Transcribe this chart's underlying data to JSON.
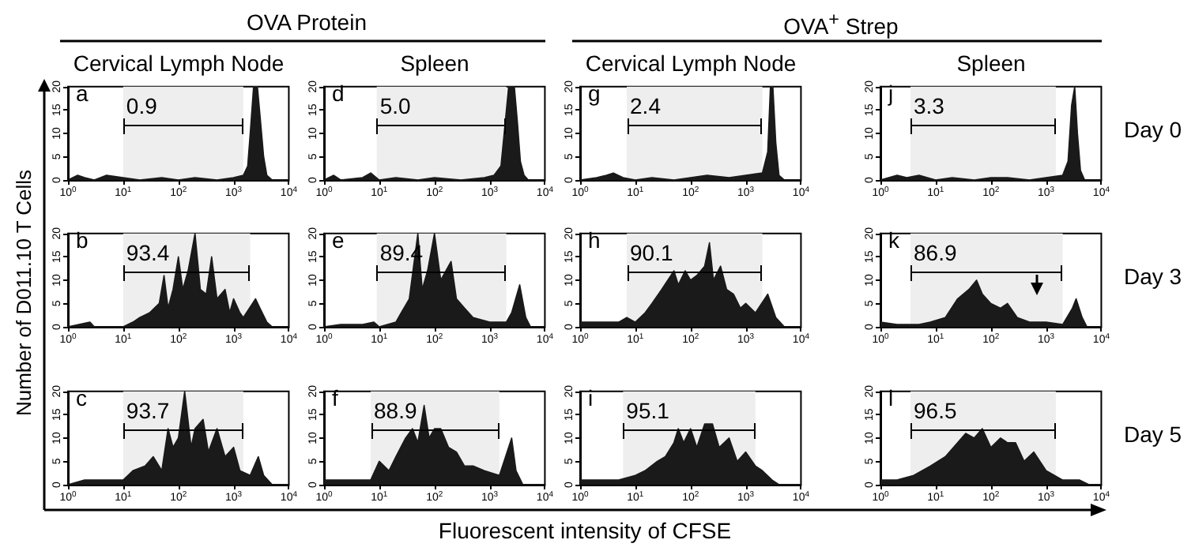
{
  "chart_data": [
    {
      "type": "area",
      "title": "Cervical Lymph Node",
      "annotations": [
        "a",
        "OVA Protein"
      ],
      "color": "#1a1a1a",
      "x": [
        1,
        1.5,
        2,
        3,
        5,
        10,
        20,
        50,
        100,
        200,
        500,
        1000,
        1500,
        1800,
        2000,
        2300,
        2700,
        3000,
        3500,
        4000,
        5000,
        10000
      ],
      "values": [
        0,
        1,
        0.5,
        0,
        1,
        0.5,
        0,
        0.5,
        0,
        0.5,
        0,
        0.5,
        1,
        3,
        10,
        20,
        20,
        14,
        5,
        1,
        0,
        0
      ],
      "log": "x",
      "xlim": [
        1,
        10000
      ],
      "xticks": [
        {
          "value": 1,
          "label": "10$^{0}$"
        },
        {
          "value": 10,
          "label": "10$^{1}$"
        },
        {
          "value": 100,
          "label": "10$^{2}$"
        },
        {
          "value": 1000,
          "label": "10$^{3}$"
        },
        {
          "value": 10000,
          "label": "10$^{4}$"
        }
      ],
      "ylim": [
        0,
        20
      ],
      "yticks": [
        0,
        5,
        10,
        15,
        20
      ],
      "bands": [
        {
          "axis": "x",
          "from": 10,
          "to": 1500,
          "label": "0.9"
        }
      ]
    },
    {
      "type": "area",
      "title": "Spleen",
      "annotations": [
        "d"
      ],
      "color": "#1a1a1a",
      "x": [
        1,
        1.5,
        2,
        5,
        7,
        10,
        20,
        50,
        100,
        300,
        800,
        1200,
        1600,
        1900,
        2200,
        2800,
        3200,
        3600,
        4200,
        5000,
        10000
      ],
      "values": [
        0,
        1,
        0,
        0.5,
        1.5,
        0,
        0.5,
        0,
        0.5,
        0,
        0.5,
        1,
        3,
        12,
        20,
        20,
        12,
        4,
        1,
        0,
        0
      ],
      "log": "x",
      "xlim": [
        1,
        10000
      ],
      "xticks": [
        {
          "value": 1,
          "label": "10$^{0}$"
        },
        {
          "value": 10,
          "label": "10$^{1}$"
        },
        {
          "value": 100,
          "label": "10$^{2}$"
        },
        {
          "value": 1000,
          "label": "10$^{3}$"
        },
        {
          "value": 10000,
          "label": "10$^{4}$"
        }
      ],
      "ylim": [
        0,
        20
      ],
      "yticks": [
        0,
        5,
        10,
        15,
        20
      ],
      "bands": [
        {
          "axis": "x",
          "from": 9,
          "to": 2000,
          "label": "5.0"
        }
      ]
    },
    {
      "type": "area",
      "title": "Cervical Lymph Node",
      "annotations": [
        "g",
        "OVA$^{+}$ Strep"
      ],
      "color": "#1a1a1a",
      "x": [
        1,
        2,
        3,
        4,
        6,
        10,
        20,
        50,
        100,
        200,
        500,
        1000,
        2000,
        2500,
        2800,
        3100,
        3500,
        4000,
        5000,
        10000
      ],
      "values": [
        0,
        0.5,
        1,
        1.5,
        0.5,
        0,
        0.5,
        0,
        0.5,
        1,
        0.5,
        1,
        1.5,
        6,
        20,
        20,
        8,
        1,
        0,
        0
      ],
      "log": "x",
      "xlim": [
        1,
        10000
      ],
      "xticks": [
        {
          "value": 1,
          "label": "10$^{0}$"
        },
        {
          "value": 10,
          "label": "10$^{1}$"
        },
        {
          "value": 100,
          "label": "10$^{2}$"
        },
        {
          "value": 1000,
          "label": "10$^{3}$"
        },
        {
          "value": 10000,
          "label": "10$^{4}$"
        }
      ],
      "ylim": [
        0,
        20
      ],
      "yticks": [
        0,
        5,
        10,
        15,
        20
      ],
      "bands": [
        {
          "axis": "x",
          "from": 7,
          "to": 2000,
          "label": "2.4"
        }
      ]
    },
    {
      "type": "area",
      "title": "Spleen",
      "annotations": [
        "j",
        "Day 0"
      ],
      "color": "#1a1a1a",
      "x": [
        1,
        2,
        3,
        5,
        10,
        20,
        50,
        100,
        200,
        500,
        1000,
        2000,
        2500,
        2900,
        3300,
        3700,
        4200,
        5000,
        10000
      ],
      "values": [
        0,
        1,
        0.5,
        1,
        0,
        0.5,
        0,
        0.5,
        0.5,
        0,
        0.5,
        1,
        4,
        16,
        20,
        10,
        2,
        0,
        0
      ],
      "log": "x",
      "xlim": [
        1,
        10000
      ],
      "xticks": [
        {
          "value": 1,
          "label": "10$^{0}$"
        },
        {
          "value": 10,
          "label": "10$^{1}$"
        },
        {
          "value": 100,
          "label": "10$^{2}$"
        },
        {
          "value": 1000,
          "label": "10$^{3}$"
        },
        {
          "value": 10000,
          "label": "10$^{4}$"
        }
      ],
      "ylim": [
        0,
        20
      ],
      "yticks": [
        0,
        5,
        10,
        15,
        20
      ],
      "bands": [
        {
          "axis": "x",
          "from": 3.5,
          "to": 1500,
          "label": "3.3"
        }
      ]
    },
    {
      "type": "area",
      "annotations": [
        "b"
      ],
      "ylabel": "Number of D011.10 T Cells",
      "color": "#1a1a1a",
      "x": [
        1,
        2.5,
        3,
        10,
        15,
        20,
        30,
        45,
        55,
        65,
        80,
        100,
        120,
        150,
        200,
        250,
        320,
        400,
        500,
        700,
        850,
        1000,
        1300,
        1500,
        2500,
        3000,
        4000,
        5000,
        10000
      ],
      "values": [
        0,
        1,
        0,
        0,
        1,
        2,
        3,
        5,
        11,
        4,
        8,
        15,
        8,
        12,
        20,
        8,
        7,
        15,
        6,
        8,
        3,
        6,
        3,
        2,
        6,
        4,
        1,
        0,
        0
      ],
      "log": "x",
      "xlim": [
        1,
        10000
      ],
      "xticks": [
        {
          "value": 1,
          "label": "10$^{0}$"
        },
        {
          "value": 10,
          "label": "10$^{1}$"
        },
        {
          "value": 100,
          "label": "10$^{2}$"
        },
        {
          "value": 1000,
          "label": "10$^{3}$"
        },
        {
          "value": 10000,
          "label": "10$^{4}$"
        }
      ],
      "ylim": [
        0,
        20
      ],
      "yticks": [
        0,
        5,
        10,
        15,
        20
      ],
      "bands": [
        {
          "axis": "x",
          "from": 10,
          "to": 2000,
          "label": "93.4"
        }
      ]
    },
    {
      "type": "area",
      "annotations": [
        "e"
      ],
      "color": "#1a1a1a",
      "x": [
        1,
        2,
        5,
        8,
        10,
        20,
        25,
        35,
        50,
        60,
        75,
        100,
        130,
        200,
        250,
        350,
        500,
        1000,
        2000,
        2500,
        3500,
        4500,
        5500,
        10000
      ],
      "values": [
        0,
        0.5,
        0.5,
        1,
        0,
        1,
        3,
        6,
        20,
        8,
        12,
        20,
        10,
        14,
        6,
        4,
        2,
        1,
        1,
        3,
        9,
        2,
        0,
        0
      ],
      "log": "x",
      "xlim": [
        1,
        10000
      ],
      "xticks": [
        {
          "value": 1,
          "label": "10$^{0}$"
        },
        {
          "value": 10,
          "label": "10$^{1}$"
        },
        {
          "value": 100,
          "label": "10$^{2}$"
        },
        {
          "value": 1000,
          "label": "10$^{3}$"
        },
        {
          "value": 10000,
          "label": "10$^{4}$"
        }
      ],
      "ylim": [
        0,
        20
      ],
      "yticks": [
        0,
        5,
        10,
        15,
        20
      ],
      "bands": [
        {
          "axis": "x",
          "from": 9,
          "to": 2000,
          "label": "89.4"
        }
      ]
    },
    {
      "type": "area",
      "annotations": [
        "h"
      ],
      "color": "#1a1a1a",
      "x": [
        1,
        2,
        5,
        7,
        10,
        15,
        20,
        30,
        50,
        60,
        80,
        100,
        130,
        180,
        220,
        260,
        350,
        450,
        600,
        800,
        1000,
        1500,
        2500,
        3500,
        5000,
        10000
      ],
      "values": [
        1,
        1,
        1,
        2,
        1,
        3,
        5,
        8,
        12,
        9,
        12,
        10,
        11,
        13,
        18,
        10,
        13,
        8,
        7,
        4,
        5,
        3,
        7,
        2,
        0,
        0
      ],
      "log": "x",
      "xlim": [
        1,
        10000
      ],
      "xticks": [
        {
          "value": 1,
          "label": "10$^{0}$"
        },
        {
          "value": 10,
          "label": "10$^{1}$"
        },
        {
          "value": 100,
          "label": "10$^{2}$"
        },
        {
          "value": 1000,
          "label": "10$^{3}$"
        },
        {
          "value": 10000,
          "label": "10$^{4}$"
        }
      ],
      "ylim": [
        0,
        20
      ],
      "yticks": [
        0,
        5,
        10,
        15,
        20
      ],
      "bands": [
        {
          "axis": "x",
          "from": 7,
          "to": 2000,
          "label": "90.1"
        }
      ]
    },
    {
      "type": "area",
      "annotations": [
        "k",
        "Day 3"
      ],
      "color": "#1a1a1a",
      "x": [
        1,
        2,
        5,
        8,
        15,
        25,
        40,
        55,
        70,
        100,
        150,
        200,
        300,
        500,
        1000,
        2000,
        3000,
        3500,
        4500,
        5500,
        10000
      ],
      "values": [
        1,
        0.5,
        0.5,
        1,
        2,
        6,
        8,
        10,
        7,
        5,
        4,
        5,
        2,
        1,
        1,
        0.5,
        4,
        6,
        2,
        0,
        0
      ],
      "log": "x",
      "xlim": [
        1,
        10000
      ],
      "xticks": [
        {
          "value": 1,
          "label": "10$^{0}$"
        },
        {
          "value": 10,
          "label": "10$^{1}$"
        },
        {
          "value": 100,
          "label": "10$^{2}$"
        },
        {
          "value": 1000,
          "label": "10$^{3}$"
        },
        {
          "value": 10000,
          "label": "10$^{4}$"
        }
      ],
      "ylim": [
        0,
        20
      ],
      "yticks": [
        0,
        5,
        10,
        15,
        20
      ],
      "bands": [
        {
          "axis": "x",
          "from": 3.5,
          "to": 2000,
          "label": "86.9"
        }
      ]
    },
    {
      "type": "area",
      "annotations": [
        "c"
      ],
      "color": "#1a1a1a",
      "x": [
        1,
        2,
        5,
        10,
        15,
        25,
        35,
        50,
        65,
        80,
        100,
        130,
        170,
        200,
        280,
        350,
        500,
        700,
        1000,
        1300,
        2000,
        2800,
        3500,
        5000,
        10000
      ],
      "values": [
        0,
        1,
        1,
        1,
        3,
        4,
        6,
        3,
        12,
        8,
        10,
        20,
        8,
        12,
        14,
        7,
        12,
        6,
        8,
        3,
        2,
        6,
        2,
        0,
        0
      ],
      "log": "x",
      "xlim": [
        1,
        10000
      ],
      "xticks": [
        {
          "value": 1,
          "label": "10$^{0}$"
        },
        {
          "value": 10,
          "label": "10$^{1}$"
        },
        {
          "value": 100,
          "label": "10$^{2}$"
        },
        {
          "value": 1000,
          "label": "10$^{3}$"
        },
        {
          "value": 10000,
          "label": "10$^{4}$"
        }
      ],
      "ylim": [
        0,
        20
      ],
      "yticks": [
        0,
        5,
        10,
        15,
        20
      ],
      "bands": [
        {
          "axis": "x",
          "from": 10,
          "to": 1500,
          "label": "93.7"
        }
      ]
    },
    {
      "type": "area",
      "annotations": [
        "f"
      ],
      "xlabel": "Fluorescent intensity of CFSE",
      "color": "#1a1a1a",
      "x": [
        1,
        2,
        4,
        7,
        10,
        15,
        20,
        30,
        40,
        50,
        65,
        80,
        100,
        130,
        180,
        250,
        350,
        500,
        800,
        1500,
        2500,
        3000,
        4000,
        10000
      ],
      "values": [
        1,
        1,
        1,
        1,
        5,
        3,
        6,
        10,
        12,
        9,
        17,
        10,
        12,
        12,
        8,
        7,
        4,
        4,
        3,
        2,
        10,
        3,
        0,
        0
      ],
      "log": "x",
      "xlim": [
        1,
        10000
      ],
      "xticks": [
        {
          "value": 1,
          "label": "10$^{0}$"
        },
        {
          "value": 10,
          "label": "10$^{1}$"
        },
        {
          "value": 100,
          "label": "10$^{2}$"
        },
        {
          "value": 1000,
          "label": "10$^{3}$"
        },
        {
          "value": 10000,
          "label": "10$^{4}$"
        }
      ],
      "ylim": [
        0,
        20
      ],
      "yticks": [
        0,
        5,
        10,
        15,
        20
      ],
      "bands": [
        {
          "axis": "x",
          "from": 7,
          "to": 1500,
          "label": "88.9"
        }
      ]
    },
    {
      "type": "area",
      "annotations": [
        "i"
      ],
      "color": "#1a1a1a",
      "x": [
        1,
        3,
        5,
        10,
        15,
        25,
        35,
        50,
        60,
        75,
        100,
        130,
        180,
        250,
        330,
        500,
        700,
        1000,
        1500,
        2000,
        3000,
        4000,
        10000
      ],
      "values": [
        1,
        1,
        1,
        2,
        3,
        5,
        6,
        9,
        12,
        9,
        12,
        8,
        13,
        13,
        8,
        10,
        5,
        7,
        4,
        3,
        1,
        0,
        0
      ],
      "log": "x",
      "xlim": [
        1,
        10000
      ],
      "xticks": [
        {
          "value": 1,
          "label": "10$^{0}$"
        },
        {
          "value": 10,
          "label": "10$^{1}$"
        },
        {
          "value": 100,
          "label": "10$^{2}$"
        },
        {
          "value": 1000,
          "label": "10$^{3}$"
        },
        {
          "value": 10000,
          "label": "10$^{4}$"
        }
      ],
      "ylim": [
        0,
        20
      ],
      "yticks": [
        0,
        5,
        10,
        15,
        20
      ],
      "bands": [
        {
          "axis": "x",
          "from": 6,
          "to": 1500,
          "label": "95.1"
        }
      ]
    },
    {
      "type": "area",
      "annotations": [
        "l",
        "Day 5"
      ],
      "color": "#1a1a1a",
      "x": [
        1,
        2,
        4,
        8,
        15,
        25,
        35,
        50,
        70,
        100,
        150,
        200,
        280,
        400,
        600,
        1000,
        2000,
        4000,
        6000,
        10000
      ],
      "values": [
        1,
        1,
        2,
        4,
        6,
        9,
        11,
        10,
        12,
        8,
        10,
        9,
        9,
        5,
        7,
        3,
        1,
        1,
        0,
        0
      ],
      "log": "x",
      "xlim": [
        1,
        10000
      ],
      "xticks": [
        {
          "value": 1,
          "label": "10$^{0}$"
        },
        {
          "value": 10,
          "label": "10$^{1}$"
        },
        {
          "value": 100,
          "label": "10$^{2}$"
        },
        {
          "value": 1000,
          "label": "10$^{3}$"
        },
        {
          "value": 10000,
          "label": "10$^{4}$"
        }
      ],
      "ylim": [
        0,
        20
      ],
      "yticks": [
        0,
        5,
        10,
        15,
        20
      ],
      "bands": [
        {
          "axis": "x",
          "from": 3.5,
          "to": 1500,
          "label": "96.5"
        }
      ]
    }
  ]
}
